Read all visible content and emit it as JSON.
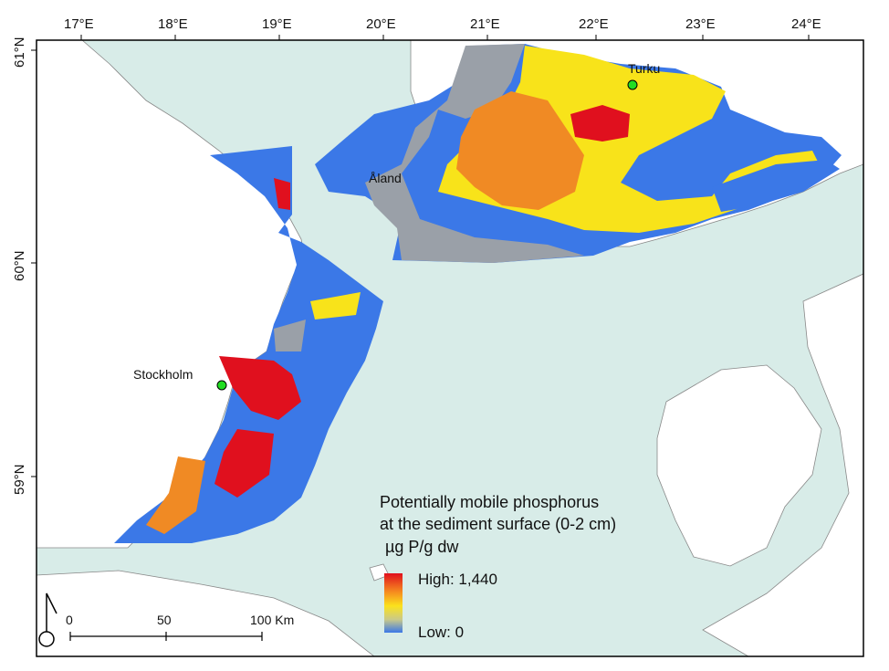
{
  "map": {
    "colors": {
      "sea": "#d8ece8",
      "land": "#ffffff",
      "frame": "#000000",
      "town": "#22dd22",
      "blue": "#3b78e7",
      "red": "#e0101e",
      "orange": "#f08a24",
      "yellow": "#f8e31a",
      "gray": "#9aa0a8"
    },
    "lon_ticks": [
      "17°E",
      "18°E",
      "19°E",
      "20°E",
      "21°E",
      "22°E",
      "23°E",
      "24°E"
    ],
    "lat_ticks": [
      "61°N",
      "60°N",
      "59°N"
    ],
    "places": {
      "turku": "Turku",
      "aland": "Åland",
      "stockholm": "Stockholm"
    },
    "legend": {
      "title_line1": "Potentially mobile phosphorus",
      "title_line2": "at the sediment surface (0-2 cm)",
      "units": "µg P/g dw",
      "high": "High: 1,440",
      "low": "Low: 0",
      "ramp_colors": [
        "#e0101e",
        "#f5861f",
        "#fbe21c",
        "#c9c98a",
        "#3b78e7"
      ]
    },
    "scale_bar": {
      "labels": [
        "0",
        "50",
        "100 Km"
      ]
    },
    "north_arrow_icon": "north-arrow-icon"
  }
}
